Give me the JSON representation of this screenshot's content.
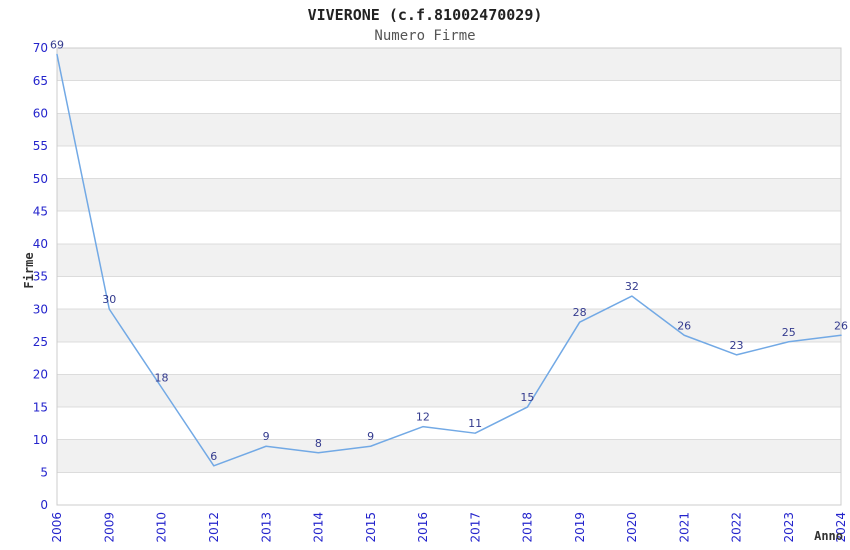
{
  "chart_data": {
    "type": "line",
    "title": "VIVERONE (c.f.81002470029)",
    "subtitle": "Numero Firme",
    "xlabel": "Anno",
    "ylabel": "Firme",
    "categories": [
      "2006",
      "2009",
      "2010",
      "2012",
      "2013",
      "2014",
      "2015",
      "2016",
      "2017",
      "2018",
      "2019",
      "2020",
      "2021",
      "2022",
      "2023",
      "2024"
    ],
    "series": [
      {
        "name": "Numero Firme",
        "values": [
          69,
          30,
          18,
          6,
          9,
          8,
          9,
          12,
          11,
          15,
          28,
          32,
          26,
          23,
          25,
          26
        ]
      }
    ],
    "ylim": [
      0,
      70
    ],
    "ytick_step": 5,
    "grid": true,
    "alternating_bands": true,
    "legend_position": "none",
    "data_labels": true
  },
  "colors": {
    "background": "#ffffff",
    "line": "#72a9e5",
    "band": "#f1f1f1",
    "gridline": "#dcdcdc",
    "plot_border": "#cccccc",
    "tick_label": "#2424cc",
    "data_label": "#343b8e",
    "title": "#222222",
    "subtitle": "#555555",
    "axis_title": "#333333"
  }
}
